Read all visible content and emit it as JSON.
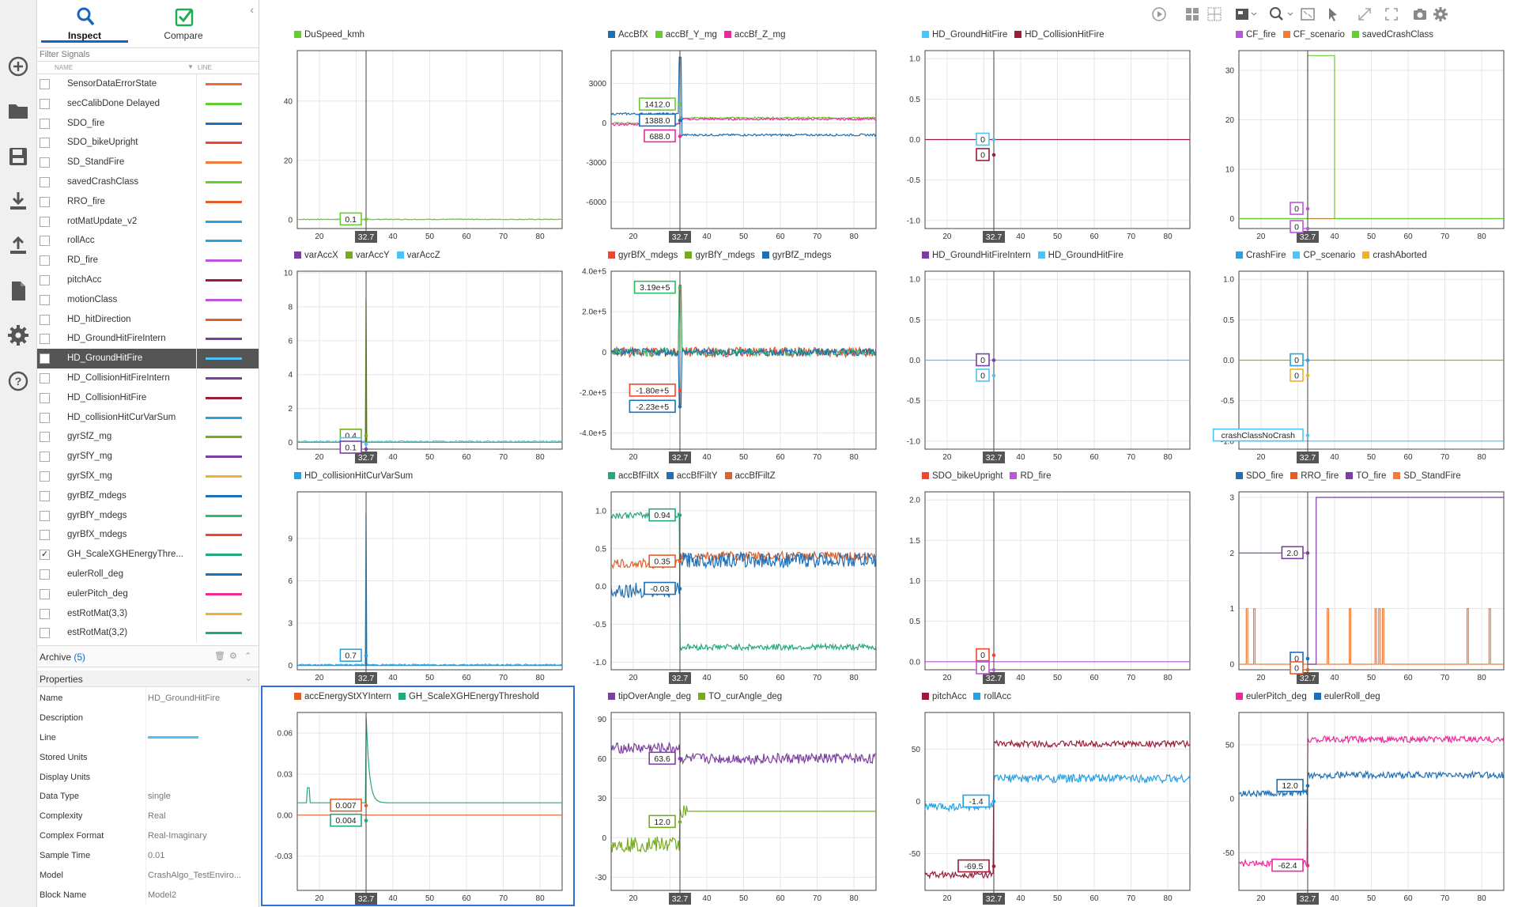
{
  "sidebar": {
    "tabs": [
      {
        "label": "Inspect"
      },
      {
        "label": "Compare"
      }
    ],
    "filter_placeholder": "Filter Signals",
    "col_name": "NAME",
    "col_line": "LINE",
    "signals": [
      {
        "name": "SensorDataErrorState",
        "color": "#ef6c3a",
        "checked": false
      },
      {
        "name": "secCalibDone Delayed",
        "color": "#66cc33",
        "checked": false
      },
      {
        "name": "SDO_fire",
        "color": "#1f6fb5",
        "checked": false
      },
      {
        "name": "SDO_bikeUpright",
        "color": "#f2462c",
        "checked": false
      },
      {
        "name": "SD_StandFire",
        "color": "#f47a3a",
        "checked": false
      },
      {
        "name": "savedCrashClass",
        "color": "#66cc33",
        "checked": false
      },
      {
        "name": "RRO_fire",
        "color": "#e0602a",
        "checked": false
      },
      {
        "name": "rotMatUpdate_v2",
        "color": "#2aa0e0",
        "checked": false
      },
      {
        "name": "rollAcc",
        "color": "#2aa0e0",
        "checked": false
      },
      {
        "name": "RD_fire",
        "color": "#bb55dd",
        "checked": false
      },
      {
        "name": "pitchAcc",
        "color": "#9b1c3a",
        "checked": false
      },
      {
        "name": "motionClass",
        "color": "#bb55dd",
        "checked": false
      },
      {
        "name": "HD_hitDirection",
        "color": "#e0602a",
        "checked": false
      },
      {
        "name": "HD_GroundHitFireIntern",
        "color": "#7b3fa0",
        "checked": false
      },
      {
        "name": "HD_GroundHitFire",
        "color": "#4fc3f7",
        "checked": false,
        "selected": true
      },
      {
        "name": "HD_CollisionHitFireIntern",
        "color": "#7b3fa0",
        "checked": false
      },
      {
        "name": "HD_CollisionHitFire",
        "color": "#9b1c3a",
        "checked": false
      },
      {
        "name": "HD_collisionHitCurVarSum",
        "color": "#2aa0e0",
        "checked": false
      },
      {
        "name": "gyrSfZ_mg",
        "color": "#77aa22",
        "checked": false
      },
      {
        "name": "gyrSfY_mg",
        "color": "#7b3fa0",
        "checked": false
      },
      {
        "name": "gyrSfX_mg",
        "color": "#f0b030",
        "checked": false
      },
      {
        "name": "gyrBfZ_mdegs",
        "color": "#1f6fb5",
        "checked": false
      },
      {
        "name": "gyrBfY_mdegs",
        "color": "#33bb66",
        "checked": false
      },
      {
        "name": "gyrBfX_mdegs",
        "color": "#f2462c",
        "checked": false
      },
      {
        "name": "GH_ScaleXGHEnergyThre...",
        "color": "#22aa77",
        "checked": true
      },
      {
        "name": "eulerRoll_deg",
        "color": "#1f6fb5",
        "checked": false
      },
      {
        "name": "eulerPitch_deg",
        "color": "#ee2a9a",
        "checked": false
      },
      {
        "name": "estRotMat(3,3)",
        "color": "#f0b030",
        "checked": false
      },
      {
        "name": "estRotMat(3,2)",
        "color": "#22aa77",
        "checked": false
      }
    ],
    "archive": {
      "label": "Archive",
      "count": "(5)"
    },
    "properties_title": "Properties",
    "properties": [
      {
        "k": "Name",
        "v": "HD_GroundHitFire"
      },
      {
        "k": "Description",
        "v": ""
      },
      {
        "k": "Line",
        "v": "",
        "line": true
      },
      {
        "k": "Stored Units",
        "v": ""
      },
      {
        "k": "Display Units",
        "v": ""
      },
      {
        "k": "Data Type",
        "v": "single"
      },
      {
        "k": "Complexity",
        "v": "Real"
      },
      {
        "k": "Complex Format",
        "v": "Real-Imaginary"
      },
      {
        "k": "Sample Time",
        "v": "0.01"
      },
      {
        "k": "Model",
        "v": "CrashAlgo_TestEnviro..."
      },
      {
        "k": "Block Name",
        "v": "Model2"
      }
    ]
  },
  "cursor_label": "32.7",
  "xticks": [
    "20",
    "30",
    "40",
    "50",
    "60",
    "70",
    "80"
  ],
  "colors": {
    "accent": "#1565c0",
    "cursor": "#444444",
    "selection": "#2f6fd6"
  },
  "plots": [
    {
      "legend": [
        {
          "n": "DuSpeed_kmh",
          "c": "#66cc33"
        }
      ],
      "ylim": [
        -3,
        57
      ],
      "yticks": [
        0,
        20,
        40
      ],
      "series": [
        {
          "c": "#66cc33",
          "type": "flat",
          "v": 0.1,
          "noise": 0.15
        }
      ],
      "labels": [
        {
          "t": "0.1",
          "c": "#66cc33",
          "side": "L",
          "y": 0.1
        }
      ]
    },
    {
      "legend": [
        {
          "n": "AccBfX",
          "c": "#1f6fb5"
        },
        {
          "n": "accBf_Y_mg",
          "c": "#66cc33"
        },
        {
          "n": "accBf_Z_mg",
          "c": "#ee2a9a"
        }
      ],
      "ylim": [
        -8000,
        5500
      ],
      "yticks": [
        -6000,
        -3000,
        0,
        3000
      ],
      "yfmt": "int",
      "series": [
        {
          "c": "#66cc33",
          "type": "step",
          "a": 0,
          "b": 400,
          "noise": 60
        },
        {
          "c": "#ee2a9a",
          "type": "step",
          "a": -100,
          "b": 300,
          "noise": 80
        },
        {
          "c": "#1f6fb5",
          "type": "step",
          "a": 700,
          "b": -900,
          "noise": 80,
          "spike": 5000
        }
      ],
      "labels": [
        {
          "t": "1412.0",
          "c": "#66cc33",
          "side": "L",
          "y": 1412
        },
        {
          "t": "1388.0",
          "c": "#1f6fb5",
          "side": "L",
          "y": 200
        },
        {
          "t": "688.0",
          "c": "#ee2a9a",
          "side": "L",
          "y": -1000
        }
      ]
    },
    {
      "legend": [
        {
          "n": "HD_GroundHitFire",
          "c": "#4fc3f7"
        },
        {
          "n": "HD_CollisionHitFire",
          "c": "#9b1c3a"
        }
      ],
      "ylim": [
        -1.1,
        1.1
      ],
      "yticks": [
        -1,
        -0.5,
        0,
        0.5,
        1
      ],
      "yfmt": "1",
      "series": [
        {
          "c": "#9b1c3a",
          "type": "flat",
          "v": 0,
          "noise": 0
        }
      ],
      "labels": [
        {
          "t": "0",
          "c": "#4fc3f7",
          "side": "L",
          "y": 0
        },
        {
          "t": "0",
          "c": "#9b1c3a",
          "side": "L",
          "y": -0.19
        }
      ]
    },
    {
      "legend": [
        {
          "n": "CF_fire",
          "c": "#bb55dd"
        },
        {
          "n": "CF_scenario",
          "c": "#f47a3a"
        },
        {
          "n": "savedCrashClass",
          "c": "#66cc33"
        }
      ],
      "ylim": [
        -2,
        34
      ],
      "yticks": [
        0,
        10,
        20,
        30
      ],
      "series": [
        {
          "c": "#b08a40",
          "type": "flat",
          "v": 0,
          "noise": 0
        },
        {
          "c": "#66cc33",
          "type": "box",
          "x0": 32.7,
          "x1": 40,
          "v": 33
        }
      ],
      "labels": [
        {
          "t": "0",
          "c": "#bb55dd",
          "side": "L",
          "y": 2
        },
        {
          "t": "0",
          "c": "#bb55dd",
          "side": "L",
          "y": -2
        }
      ]
    },
    {
      "legend": [
        {
          "n": "varAccX",
          "c": "#7b3fa0"
        },
        {
          "n": "varAccY",
          "c": "#77aa22"
        },
        {
          "n": "varAccZ",
          "c": "#4fc3f7"
        }
      ],
      "ylim": [
        -0.4,
        10.1
      ],
      "yticks": [
        0,
        2,
        4,
        6,
        8,
        10
      ],
      "series": [
        {
          "c": "#4fc3f7",
          "type": "flat",
          "v": 0.05,
          "noise": 0.05
        },
        {
          "c": "#77aa22",
          "type": "spike",
          "v": 0,
          "h": 8.5
        }
      ],
      "labels": [
        {
          "t": "0.4",
          "c": "#77aa22",
          "side": "L",
          "y": 0.4
        },
        {
          "t": "0.3",
          "c": "#4fc3f7",
          "side": "L",
          "y": -0.1
        },
        {
          "t": "0.1",
          "c": "#7b3fa0",
          "side": "L",
          "y": -0.6
        }
      ]
    },
    {
      "legend": [
        {
          "n": "gyrBfX_mdegs",
          "c": "#f2462c"
        },
        {
          "n": "gyrBfY_mdegs",
          "c": "#77aa22"
        },
        {
          "n": "gyrBfZ_mdegs",
          "c": "#1f6fb5"
        }
      ],
      "ylim": [
        -480000,
        400000
      ],
      "yticks": [
        -400000,
        -200000,
        0,
        200000,
        400000
      ],
      "yfmt": "sci",
      "series": [
        {
          "c": "#f2462c",
          "type": "flat",
          "v": 0,
          "noise": 25000,
          "spike": 330000
        },
        {
          "c": "#33bb66",
          "type": "flat",
          "v": 0,
          "noise": 20000,
          "spike": 300000
        },
        {
          "c": "#1f6fb5",
          "type": "flat",
          "v": 0,
          "noise": 18000,
          "spike": -260000
        }
      ],
      "labels": [
        {
          "t": "3.19e+5",
          "c": "#33bb66",
          "side": "L",
          "y": 319000
        },
        {
          "t": "-1.80e+5",
          "c": "#f2462c",
          "side": "L",
          "y": -190000
        },
        {
          "t": "-2.23e+5",
          "c": "#1f6fb5",
          "side": "L",
          "y": -270000
        }
      ]
    },
    {
      "legend": [
        {
          "n": "HD_GroundHitFireIntern",
          "c": "#7b3fa0"
        },
        {
          "n": "HD_GroundHitFire",
          "c": "#4fc3f7"
        }
      ],
      "ylim": [
        -1.1,
        1.1
      ],
      "yticks": [
        -1,
        -0.5,
        0,
        0.5,
        1
      ],
      "yfmt": "1",
      "series": [
        {
          "c": "#4fc3f7",
          "type": "flat",
          "v": 0,
          "noise": 0
        }
      ],
      "labels": [
        {
          "t": "0",
          "c": "#7b3fa0",
          "side": "L",
          "y": 0
        },
        {
          "t": "0",
          "c": "#4fc3f7",
          "side": "L",
          "y": -0.19
        }
      ]
    },
    {
      "legend": [
        {
          "n": "CrashFire",
          "c": "#2aa0e0"
        },
        {
          "n": "CP_scenario",
          "c": "#4fc3f7"
        },
        {
          "n": "crashAborted",
          "c": "#f0b030"
        }
      ],
      "ylim": [
        -1.1,
        1.1
      ],
      "yticks": [
        -1,
        -0.5,
        0,
        0.5,
        1
      ],
      "yfmt": "1",
      "series": [
        {
          "c": "#b0a040",
          "type": "flat",
          "v": 0,
          "noise": 0
        },
        {
          "c": "#4fc3f7",
          "type": "flat",
          "v": -1,
          "noise": 0
        }
      ],
      "labels": [
        {
          "t": "0",
          "c": "#2aa0e0",
          "side": "L",
          "y": 0
        },
        {
          "t": "0",
          "c": "#f0b030",
          "side": "L",
          "y": -0.19
        },
        {
          "t": "crashClassNoCrash",
          "c": "#4fc3f7",
          "side": "L",
          "y": -0.93
        }
      ]
    },
    {
      "legend": [
        {
          "n": "HD_collisionHitCurVarSum",
          "c": "#2aa0e0"
        }
      ],
      "ylim": [
        -0.3,
        12.3
      ],
      "yticks": [
        0,
        3,
        6,
        9
      ],
      "series": [
        {
          "c": "#2aa0e0",
          "type": "flat",
          "v": 0.05,
          "noise": 0.05
        },
        {
          "c": "#2aa0e0",
          "type": "spike",
          "v": 0,
          "h": 10.8
        }
      ],
      "labels": [
        {
          "t": "0.7",
          "c": "#2aa0e0",
          "side": "L",
          "y": 0.7
        }
      ]
    },
    {
      "legend": [
        {
          "n": "accBfFiltX",
          "c": "#22aa77"
        },
        {
          "n": "accBfFiltY",
          "c": "#1f6fb5"
        },
        {
          "n": "accBfFiltZ",
          "c": "#e0602a"
        }
      ],
      "ylim": [
        -1.1,
        1.25
      ],
      "yticks": [
        -1,
        -0.5,
        0,
        0.5,
        1
      ],
      "yfmt": "1",
      "series": [
        {
          "c": "#22aa77",
          "type": "step",
          "a": 0.94,
          "b": -0.8,
          "noise": 0.04
        },
        {
          "c": "#e0602a",
          "type": "step",
          "a": 0.3,
          "b": 0.4,
          "noise": 0.06
        },
        {
          "c": "#1f6fb5",
          "type": "step",
          "a": -0.05,
          "b": 0.35,
          "noise": 0.1
        }
      ],
      "labels": [
        {
          "t": "0.94",
          "c": "#22aa77",
          "side": "L",
          "y": 0.94
        },
        {
          "t": "0.35",
          "c": "#e0602a",
          "side": "L",
          "y": 0.33
        },
        {
          "t": "-0.03",
          "c": "#1f6fb5",
          "side": "L",
          "y": -0.03
        }
      ]
    },
    {
      "legend": [
        {
          "n": "SDO_bikeUpright",
          "c": "#f2462c"
        },
        {
          "n": "RD_fire",
          "c": "#bb55dd"
        }
      ],
      "ylim": [
        -0.1,
        2.1
      ],
      "yticks": [
        0,
        0.5,
        1,
        1.5,
        2
      ],
      "yfmt": "1",
      "series": [
        {
          "c": "#bb55dd",
          "type": "flat",
          "v": 0,
          "noise": 0
        }
      ],
      "labels": [
        {
          "t": "0",
          "c": "#f2462c",
          "side": "L",
          "y": 0.08
        },
        {
          "t": "0",
          "c": "#bb55dd",
          "side": "L",
          "y": -0.1
        }
      ]
    },
    {
      "legend": [
        {
          "n": "SDO_fire",
          "c": "#1f6fb5"
        },
        {
          "n": "RRO_fire",
          "c": "#e0602a"
        },
        {
          "n": "TO_fire",
          "c": "#7b3fa0"
        },
        {
          "n": "SD_StandFire",
          "c": "#f47a3a"
        }
      ],
      "ylim": [
        -0.1,
        3.1
      ],
      "yticks": [
        0,
        1,
        2,
        3
      ],
      "series": [
        {
          "c": "#f47a3a",
          "type": "pulses",
          "v": 1,
          "xs": [
            16,
            18,
            38,
            44,
            51,
            52,
            53,
            76,
            82
          ]
        },
        {
          "c": "#7b3fa0",
          "type": "stepto",
          "a": 2,
          "b": 3,
          "x": 35
        }
      ],
      "labels": [
        {
          "t": "2.0",
          "c": "#7b3fa0",
          "side": "L",
          "y": 2
        },
        {
          "t": "0",
          "c": "#1f6fb5",
          "side": "L",
          "y": 0.1
        },
        {
          "t": "0",
          "c": "#e0602a",
          "side": "L",
          "y": -0.12
        }
      ]
    },
    {
      "legend": [
        {
          "n": "accEnergyStXYIntern",
          "c": "#e0602a"
        },
        {
          "n": "GH_ScaleXGHEnergyThreshold",
          "c": "#22aa77"
        }
      ],
      "ylim": [
        -0.055,
        0.075
      ],
      "yticks": [
        -0.03,
        0,
        0.03,
        0.06
      ],
      "yfmt": "2",
      "series": [
        {
          "c": "#e0602a",
          "type": "flat",
          "v": 0,
          "noise": 0
        },
        {
          "c": "#22aa77",
          "type": "decay",
          "a": 0.009,
          "h": 0.075
        }
      ],
      "labels": [
        {
          "t": "0.007",
          "c": "#e0602a",
          "side": "L",
          "y": 0.007
        },
        {
          "t": "0.004",
          "c": "#22aa77",
          "side": "L",
          "y": -0.004
        }
      ]
    },
    {
      "legend": [
        {
          "n": "tipOverAngle_deg",
          "c": "#7b3fa0"
        },
        {
          "n": "TO_curAngle_deg",
          "c": "#77aa22"
        }
      ],
      "ylim": [
        -40,
        95
      ],
      "yticks": [
        -30,
        0,
        30,
        60,
        90
      ],
      "series": [
        {
          "c": "#7b3fa0",
          "type": "step",
          "a": 68,
          "b": 60,
          "noise": 4
        },
        {
          "c": "#77aa22",
          "type": "step",
          "a": -5,
          "b": 20,
          "noise": 6,
          "flat2": true
        }
      ],
      "labels": [
        {
          "t": "63.6",
          "c": "#7b3fa0",
          "side": "L",
          "y": 60
        },
        {
          "t": "12.0",
          "c": "#77aa22",
          "side": "L",
          "y": 12
        }
      ]
    },
    {
      "legend": [
        {
          "n": "pitchAcc",
          "c": "#9b1c3a"
        },
        {
          "n": "rollAcc",
          "c": "#2aa0e0"
        }
      ],
      "ylim": [
        -85,
        85
      ],
      "yticks": [
        -50,
        0,
        50
      ],
      "series": [
        {
          "c": "#9b1c3a",
          "type": "step",
          "a": -70,
          "b": 55,
          "noise": 3
        },
        {
          "c": "#2aa0e0",
          "type": "step",
          "a": -5,
          "b": 22,
          "noise": 4
        }
      ],
      "labels": [
        {
          "t": "-1.4",
          "c": "#2aa0e0",
          "side": "L",
          "y": 0
        },
        {
          "t": "-69.5",
          "c": "#9b1c3a",
          "side": "L",
          "y": -62
        }
      ]
    },
    {
      "legend": [
        {
          "n": "eulerPitch_deg",
          "c": "#ee2a9a"
        },
        {
          "n": "eulerRoll_deg",
          "c": "#1f6fb5"
        }
      ],
      "ylim": [
        -85,
        80
      ],
      "yticks": [
        -50,
        0,
        50
      ],
      "series": [
        {
          "c": "#ee2a9a",
          "type": "step",
          "a": -60,
          "b": 55,
          "noise": 3
        },
        {
          "c": "#1f6fb5",
          "type": "step",
          "a": 5,
          "b": 22,
          "noise": 3
        }
      ],
      "labels": [
        {
          "t": "12.0",
          "c": "#1f6fb5",
          "side": "L",
          "y": 12
        },
        {
          "t": "-62.4",
          "c": "#ee2a9a",
          "side": "L",
          "y": -62
        }
      ]
    }
  ]
}
